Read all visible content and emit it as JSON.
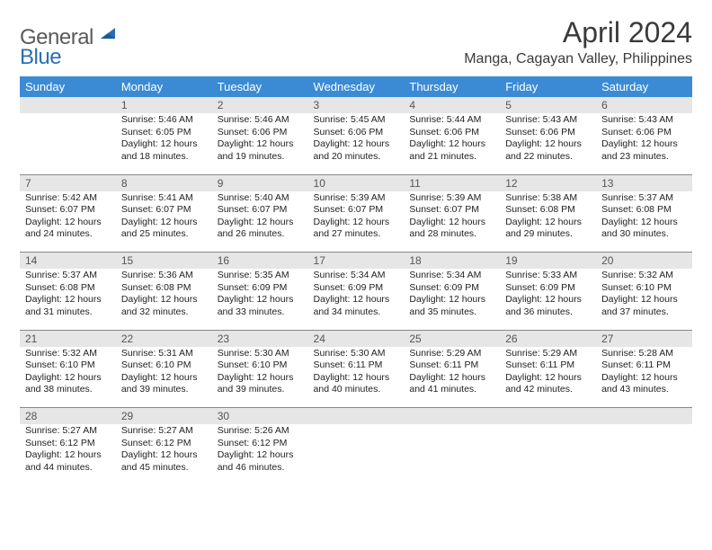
{
  "logo": {
    "text1": "General",
    "text2": "Blue",
    "tri_color": "#2a6fb5"
  },
  "title": "April 2024",
  "location": "Manga, Cagayan Valley, Philippines",
  "header_bg": "#3b8bd4",
  "daynum_bg": "#e6e6e6",
  "days": [
    "Sunday",
    "Monday",
    "Tuesday",
    "Wednesday",
    "Thursday",
    "Friday",
    "Saturday"
  ],
  "weeks": [
    [
      null,
      {
        "n": "1",
        "sr": "5:46 AM",
        "ss": "6:05 PM",
        "dl": "12 hours and 18 minutes."
      },
      {
        "n": "2",
        "sr": "5:46 AM",
        "ss": "6:06 PM",
        "dl": "12 hours and 19 minutes."
      },
      {
        "n": "3",
        "sr": "5:45 AM",
        "ss": "6:06 PM",
        "dl": "12 hours and 20 minutes."
      },
      {
        "n": "4",
        "sr": "5:44 AM",
        "ss": "6:06 PM",
        "dl": "12 hours and 21 minutes."
      },
      {
        "n": "5",
        "sr": "5:43 AM",
        "ss": "6:06 PM",
        "dl": "12 hours and 22 minutes."
      },
      {
        "n": "6",
        "sr": "5:43 AM",
        "ss": "6:06 PM",
        "dl": "12 hours and 23 minutes."
      }
    ],
    [
      {
        "n": "7",
        "sr": "5:42 AM",
        "ss": "6:07 PM",
        "dl": "12 hours and 24 minutes."
      },
      {
        "n": "8",
        "sr": "5:41 AM",
        "ss": "6:07 PM",
        "dl": "12 hours and 25 minutes."
      },
      {
        "n": "9",
        "sr": "5:40 AM",
        "ss": "6:07 PM",
        "dl": "12 hours and 26 minutes."
      },
      {
        "n": "10",
        "sr": "5:39 AM",
        "ss": "6:07 PM",
        "dl": "12 hours and 27 minutes."
      },
      {
        "n": "11",
        "sr": "5:39 AM",
        "ss": "6:07 PM",
        "dl": "12 hours and 28 minutes."
      },
      {
        "n": "12",
        "sr": "5:38 AM",
        "ss": "6:08 PM",
        "dl": "12 hours and 29 minutes."
      },
      {
        "n": "13",
        "sr": "5:37 AM",
        "ss": "6:08 PM",
        "dl": "12 hours and 30 minutes."
      }
    ],
    [
      {
        "n": "14",
        "sr": "5:37 AM",
        "ss": "6:08 PM",
        "dl": "12 hours and 31 minutes."
      },
      {
        "n": "15",
        "sr": "5:36 AM",
        "ss": "6:08 PM",
        "dl": "12 hours and 32 minutes."
      },
      {
        "n": "16",
        "sr": "5:35 AM",
        "ss": "6:09 PM",
        "dl": "12 hours and 33 minutes."
      },
      {
        "n": "17",
        "sr": "5:34 AM",
        "ss": "6:09 PM",
        "dl": "12 hours and 34 minutes."
      },
      {
        "n": "18",
        "sr": "5:34 AM",
        "ss": "6:09 PM",
        "dl": "12 hours and 35 minutes."
      },
      {
        "n": "19",
        "sr": "5:33 AM",
        "ss": "6:09 PM",
        "dl": "12 hours and 36 minutes."
      },
      {
        "n": "20",
        "sr": "5:32 AM",
        "ss": "6:10 PM",
        "dl": "12 hours and 37 minutes."
      }
    ],
    [
      {
        "n": "21",
        "sr": "5:32 AM",
        "ss": "6:10 PM",
        "dl": "12 hours and 38 minutes."
      },
      {
        "n": "22",
        "sr": "5:31 AM",
        "ss": "6:10 PM",
        "dl": "12 hours and 39 minutes."
      },
      {
        "n": "23",
        "sr": "5:30 AM",
        "ss": "6:10 PM",
        "dl": "12 hours and 39 minutes."
      },
      {
        "n": "24",
        "sr": "5:30 AM",
        "ss": "6:11 PM",
        "dl": "12 hours and 40 minutes."
      },
      {
        "n": "25",
        "sr": "5:29 AM",
        "ss": "6:11 PM",
        "dl": "12 hours and 41 minutes."
      },
      {
        "n": "26",
        "sr": "5:29 AM",
        "ss": "6:11 PM",
        "dl": "12 hours and 42 minutes."
      },
      {
        "n": "27",
        "sr": "5:28 AM",
        "ss": "6:11 PM",
        "dl": "12 hours and 43 minutes."
      }
    ],
    [
      {
        "n": "28",
        "sr": "5:27 AM",
        "ss": "6:12 PM",
        "dl": "12 hours and 44 minutes."
      },
      {
        "n": "29",
        "sr": "5:27 AM",
        "ss": "6:12 PM",
        "dl": "12 hours and 45 minutes."
      },
      {
        "n": "30",
        "sr": "5:26 AM",
        "ss": "6:12 PM",
        "dl": "12 hours and 46 minutes."
      },
      null,
      null,
      null,
      null
    ]
  ]
}
